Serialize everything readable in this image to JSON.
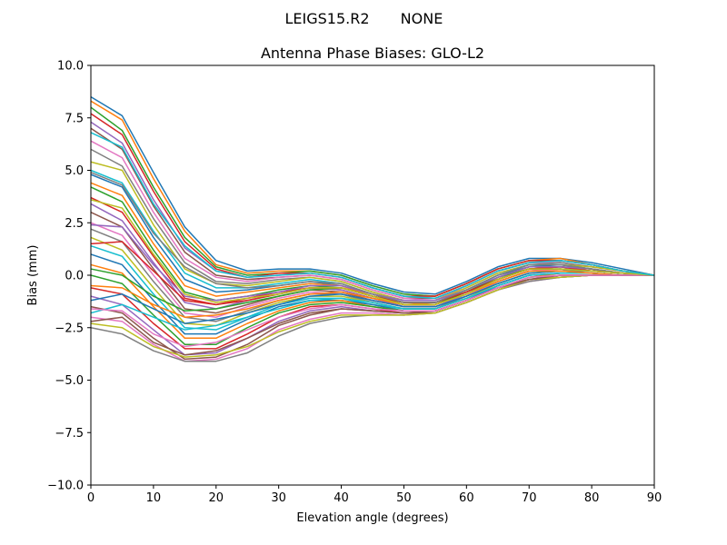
{
  "figure": {
    "suptitle_left": "LEIGS15.R2",
    "suptitle_right": "NONE"
  },
  "chart_data": {
    "type": "line",
    "title": "Antenna Phase Biases: GLO-L2",
    "xlabel": "Elevation angle (degrees)",
    "ylabel": "Bias (mm)",
    "xlim": [
      0,
      90
    ],
    "ylim": [
      -10,
      10
    ],
    "xticks": [
      "0",
      "10",
      "20",
      "30",
      "40",
      "50",
      "60",
      "70",
      "80",
      "90"
    ],
    "yticks": [
      "10.0",
      "7.5",
      "5.0",
      "2.5",
      "0.0",
      "−2.5",
      "−5.0",
      "−7.5",
      "−10.0"
    ],
    "grid": false,
    "x": [
      0,
      5,
      10,
      15,
      20,
      25,
      30,
      35,
      40,
      45,
      50,
      55,
      60,
      65,
      70,
      75,
      80,
      85,
      90
    ],
    "series": [
      {
        "values": [
          8.5,
          7.6,
          4.9,
          2.3,
          0.7,
          0.2,
          0.3,
          0.3,
          0.1,
          -0.4,
          -0.8,
          -0.9,
          -0.3,
          0.4,
          0.8,
          0.8,
          0.6,
          0.3,
          0.0
        ]
      },
      {
        "values": [
          8.3,
          7.4,
          4.6,
          2.1,
          0.5,
          0.1,
          0.2,
          0.2,
          0.0,
          -0.5,
          -0.9,
          -1.0,
          -0.4,
          0.3,
          0.7,
          0.8,
          0.5,
          0.2,
          0.0
        ]
      },
      {
        "values": [
          8.0,
          6.9,
          4.2,
          1.8,
          0.4,
          0.0,
          0.1,
          0.2,
          0.0,
          -0.5,
          -0.9,
          -1.0,
          -0.4,
          0.3,
          0.7,
          0.7,
          0.5,
          0.2,
          0.0
        ]
      },
      {
        "values": [
          7.7,
          6.7,
          4.0,
          1.6,
          0.3,
          -0.1,
          0.1,
          0.1,
          -0.1,
          -0.6,
          -1.0,
          -1.0,
          -0.4,
          0.3,
          0.7,
          0.7,
          0.5,
          0.2,
          0.0
        ]
      },
      {
        "values": [
          7.3,
          6.3,
          3.6,
          1.3,
          0.2,
          -0.1,
          0.0,
          0.1,
          -0.1,
          -0.6,
          -1.0,
          -1.1,
          -0.5,
          0.2,
          0.6,
          0.7,
          0.5,
          0.2,
          0.0
        ]
      },
      {
        "values": [
          7.0,
          6.0,
          3.3,
          1.1,
          0.0,
          -0.2,
          -0.1,
          0.0,
          -0.2,
          -0.7,
          -1.1,
          -1.1,
          -0.5,
          0.2,
          0.6,
          0.6,
          0.4,
          0.2,
          0.0
        ]
      },
      {
        "values": [
          6.4,
          5.6,
          3.0,
          0.8,
          -0.1,
          -0.3,
          -0.1,
          0.0,
          -0.2,
          -0.7,
          -1.1,
          -1.2,
          -0.5,
          0.2,
          0.6,
          0.6,
          0.4,
          0.2,
          0.0
        ]
      },
      {
        "values": [
          6.0,
          5.2,
          2.7,
          0.6,
          -0.3,
          -0.4,
          -0.2,
          -0.1,
          -0.3,
          -0.8,
          -1.2,
          -1.2,
          -0.6,
          0.1,
          0.5,
          0.6,
          0.4,
          0.2,
          0.0
        ]
      },
      {
        "values": [
          5.4,
          5.0,
          2.4,
          0.3,
          -0.4,
          -0.5,
          -0.3,
          -0.1,
          -0.3,
          -0.8,
          -1.2,
          -1.2,
          -0.6,
          0.1,
          0.5,
          0.5,
          0.4,
          0.2,
          0.0
        ]
      },
      {
        "values": [
          5.0,
          4.4,
          2.1,
          0.1,
          -0.6,
          -0.6,
          -0.4,
          -0.2,
          -0.4,
          -0.9,
          -1.3,
          -1.3,
          -0.7,
          0.0,
          0.5,
          0.5,
          0.3,
          0.1,
          0.0
        ]
      },
      {
        "values": [
          4.8,
          4.2,
          1.8,
          -0.2,
          -0.8,
          -0.7,
          -0.5,
          -0.3,
          -0.5,
          -0.9,
          -1.3,
          -1.3,
          -0.7,
          0.0,
          0.4,
          0.5,
          0.3,
          0.1,
          0.0
        ]
      },
      {
        "values": [
          4.4,
          3.8,
          1.5,
          -0.5,
          -1.0,
          -0.8,
          -0.6,
          -0.4,
          -0.5,
          -1.0,
          -1.3,
          -1.4,
          -0.8,
          -0.1,
          0.4,
          0.4,
          0.3,
          0.1,
          0.0
        ]
      },
      {
        "values": [
          4.2,
          3.5,
          1.2,
          -0.8,
          -1.2,
          -1.0,
          -0.7,
          -0.5,
          -0.6,
          -1.0,
          -1.4,
          -1.4,
          -0.8,
          -0.1,
          0.3,
          0.4,
          0.3,
          0.1,
          0.0
        ]
      },
      {
        "values": [
          3.7,
          3.0,
          0.9,
          -1.1,
          -1.4,
          -1.1,
          -0.8,
          -0.6,
          -0.7,
          -1.1,
          -1.4,
          -1.4,
          -0.9,
          -0.2,
          0.3,
          0.4,
          0.2,
          0.1,
          0.0
        ]
      },
      {
        "values": [
          3.4,
          2.6,
          0.6,
          -1.3,
          -1.6,
          -1.2,
          -0.9,
          -0.6,
          -0.7,
          -1.1,
          -1.5,
          -1.5,
          -0.9,
          -0.2,
          0.3,
          0.3,
          0.2,
          0.1,
          0.0
        ]
      },
      {
        "values": [
          3.0,
          2.3,
          0.3,
          -1.6,
          -1.8,
          -1.4,
          -1.0,
          -0.7,
          -0.8,
          -1.2,
          -1.5,
          -1.5,
          -1.0,
          -0.3,
          0.2,
          0.3,
          0.2,
          0.1,
          0.0
        ]
      },
      {
        "values": [
          2.5,
          1.9,
          0.0,
          -1.8,
          -2.0,
          -1.5,
          -1.1,
          -0.8,
          -0.9,
          -1.2,
          -1.5,
          -1.5,
          -1.0,
          -0.3,
          0.2,
          0.3,
          0.2,
          0.1,
          0.0
        ]
      },
      {
        "values": [
          2.2,
          1.6,
          -0.3,
          -2.0,
          -2.2,
          -1.7,
          -1.2,
          -0.9,
          -0.9,
          -1.3,
          -1.6,
          -1.6,
          -1.0,
          -0.4,
          0.1,
          0.2,
          0.2,
          0.1,
          0.0
        ]
      },
      {
        "values": [
          1.8,
          1.2,
          -0.6,
          -2.3,
          -2.4,
          -1.8,
          -1.3,
          -1.0,
          -1.0,
          -1.3,
          -1.6,
          -1.6,
          -1.1,
          -0.4,
          0.1,
          0.2,
          0.1,
          0.0,
          0.0
        ]
      },
      {
        "values": [
          1.4,
          0.9,
          -0.9,
          -2.5,
          -2.6,
          -2.0,
          -1.4,
          -1.1,
          -1.1,
          -1.4,
          -1.6,
          -1.6,
          -1.1,
          -0.5,
          0.0,
          0.1,
          0.1,
          0.0,
          0.0
        ]
      },
      {
        "values": [
          1.0,
          0.5,
          -1.2,
          -2.8,
          -2.8,
          -2.1,
          -1.5,
          -1.2,
          -1.2,
          -1.4,
          -1.7,
          -1.7,
          -1.2,
          -0.5,
          0.0,
          0.1,
          0.1,
          0.0,
          0.0
        ]
      },
      {
        "values": [
          0.5,
          0.1,
          -1.5,
          -3.0,
          -3.0,
          -2.3,
          -1.7,
          -1.3,
          -1.2,
          -1.5,
          -1.7,
          -1.7,
          -1.2,
          -0.6,
          -0.1,
          0.1,
          0.1,
          0.0,
          0.0
        ]
      },
      {
        "values": [
          0.0,
          -0.4,
          -1.9,
          -3.3,
          -3.3,
          -2.5,
          -1.8,
          -1.4,
          -1.3,
          -1.5,
          -1.7,
          -1.7,
          -1.2,
          -0.6,
          -0.1,
          0.0,
          0.0,
          0.0,
          0.0
        ]
      },
      {
        "values": [
          -0.6,
          -0.9,
          -2.3,
          -3.5,
          -3.5,
          -2.8,
          -2.0,
          -1.5,
          -1.4,
          -1.6,
          -1.8,
          -1.7,
          -1.2,
          -0.6,
          -0.2,
          0.0,
          0.0,
          0.0,
          0.0
        ]
      },
      {
        "values": [
          -1.0,
          -1.4,
          -2.6,
          -3.8,
          -3.7,
          -3.0,
          -2.2,
          -1.7,
          -1.5,
          -1.7,
          -1.8,
          -1.8,
          -1.3,
          -0.7,
          -0.2,
          -0.1,
          0.0,
          0.0,
          0.0
        ]
      },
      {
        "values": [
          -1.5,
          -1.8,
          -3.0,
          -4.0,
          -3.9,
          -3.3,
          -2.4,
          -1.9,
          -1.6,
          -1.7,
          -1.8,
          -1.8,
          -1.3,
          -0.7,
          -0.2,
          -0.1,
          0.0,
          0.0,
          0.0
        ]
      },
      {
        "values": [
          -2.0,
          -2.2,
          -3.3,
          -4.1,
          -4.0,
          -3.5,
          -2.6,
          -2.1,
          -1.8,
          -1.8,
          -1.9,
          -1.8,
          -1.3,
          -0.7,
          -0.3,
          -0.1,
          0.0,
          0.0,
          0.0
        ]
      },
      {
        "values": [
          -2.5,
          -2.8,
          -3.6,
          -4.1,
          -4.1,
          -3.7,
          -2.9,
          -2.3,
          -2.0,
          -1.9,
          -1.9,
          -1.8,
          -1.3,
          -0.7,
          -0.3,
          -0.1,
          0.0,
          0.0,
          0.0
        ]
      },
      {
        "values": [
          -2.3,
          -2.5,
          -3.4,
          -3.9,
          -3.8,
          -3.4,
          -2.7,
          -2.2,
          -1.9,
          -1.9,
          -1.9,
          -1.8,
          -1.3,
          -0.7,
          -0.2,
          -0.1,
          0.0,
          0.0,
          0.0
        ]
      },
      {
        "values": [
          -1.8,
          -1.4,
          -2.0,
          -2.6,
          -2.4,
          -2.0,
          -1.6,
          -1.2,
          -1.1,
          -1.3,
          -1.6,
          -1.6,
          -1.1,
          -0.5,
          0.0,
          0.1,
          0.1,
          0.0,
          0.0
        ]
      },
      {
        "values": [
          -1.2,
          -0.9,
          -1.6,
          -2.3,
          -2.1,
          -1.8,
          -1.4,
          -1.0,
          -0.9,
          -1.2,
          -1.5,
          -1.5,
          -1.0,
          -0.4,
          0.1,
          0.2,
          0.1,
          0.0,
          0.0
        ]
      },
      {
        "values": [
          -0.5,
          -0.6,
          -1.4,
          -2.0,
          -1.9,
          -1.6,
          -1.2,
          -0.9,
          -0.8,
          -1.1,
          -1.4,
          -1.4,
          -0.9,
          -0.3,
          0.2,
          0.2,
          0.1,
          0.0,
          0.0
        ]
      },
      {
        "values": [
          0.3,
          0.0,
          -1.0,
          -1.7,
          -1.6,
          -1.3,
          -1.0,
          -0.7,
          -0.6,
          -1.0,
          -1.3,
          -1.3,
          -0.8,
          -0.2,
          0.3,
          0.3,
          0.2,
          0.1,
          0.0
        ]
      },
      {
        "values": [
          1.5,
          1.6,
          0.2,
          -1.2,
          -1.4,
          -1.2,
          -0.9,
          -0.6,
          -0.6,
          -1.0,
          -1.3,
          -1.3,
          -0.8,
          -0.2,
          0.3,
          0.4,
          0.2,
          0.1,
          0.0
        ]
      },
      {
        "values": [
          2.4,
          2.3,
          0.5,
          -1.0,
          -1.2,
          -1.0,
          -0.8,
          -0.5,
          -0.5,
          -0.9,
          -1.2,
          -1.2,
          -0.7,
          -0.1,
          0.4,
          0.4,
          0.3,
          0.1,
          0.0
        ]
      },
      {
        "values": [
          -2.2,
          -2.0,
          -3.2,
          -3.8,
          -3.6,
          -3.0,
          -2.3,
          -1.8,
          -1.6,
          -1.7,
          -1.8,
          -1.7,
          -1.2,
          -0.6,
          -0.2,
          0.0,
          0.0,
          0.0,
          0.0
        ]
      },
      {
        "values": [
          -1.6,
          -1.7,
          -2.8,
          -3.4,
          -3.2,
          -2.6,
          -2.0,
          -1.6,
          -1.4,
          -1.6,
          -1.7,
          -1.7,
          -1.2,
          -0.6,
          -0.1,
          0.0,
          0.0,
          0.0,
          0.0
        ]
      },
      {
        "values": [
          4.9,
          4.3,
          2.0,
          0.4,
          -0.4,
          -0.6,
          -0.5,
          -0.3,
          -0.4,
          -0.9,
          -1.3,
          -1.3,
          -0.7,
          0.0,
          0.5,
          0.5,
          0.3,
          0.1,
          0.0
        ]
      },
      {
        "values": [
          3.6,
          3.2,
          1.0,
          -0.9,
          -1.3,
          -1.1,
          -0.9,
          -0.6,
          -0.6,
          -1.0,
          -1.4,
          -1.4,
          -0.9,
          -0.2,
          0.3,
          0.3,
          0.2,
          0.1,
          0.0
        ]
      },
      {
        "values": [
          6.8,
          6.1,
          3.4,
          1.4,
          0.2,
          -0.1,
          0.0,
          0.1,
          -0.1,
          -0.6,
          -1.0,
          -1.1,
          -0.5,
          0.2,
          0.6,
          0.7,
          0.5,
          0.2,
          0.0
        ]
      }
    ]
  }
}
